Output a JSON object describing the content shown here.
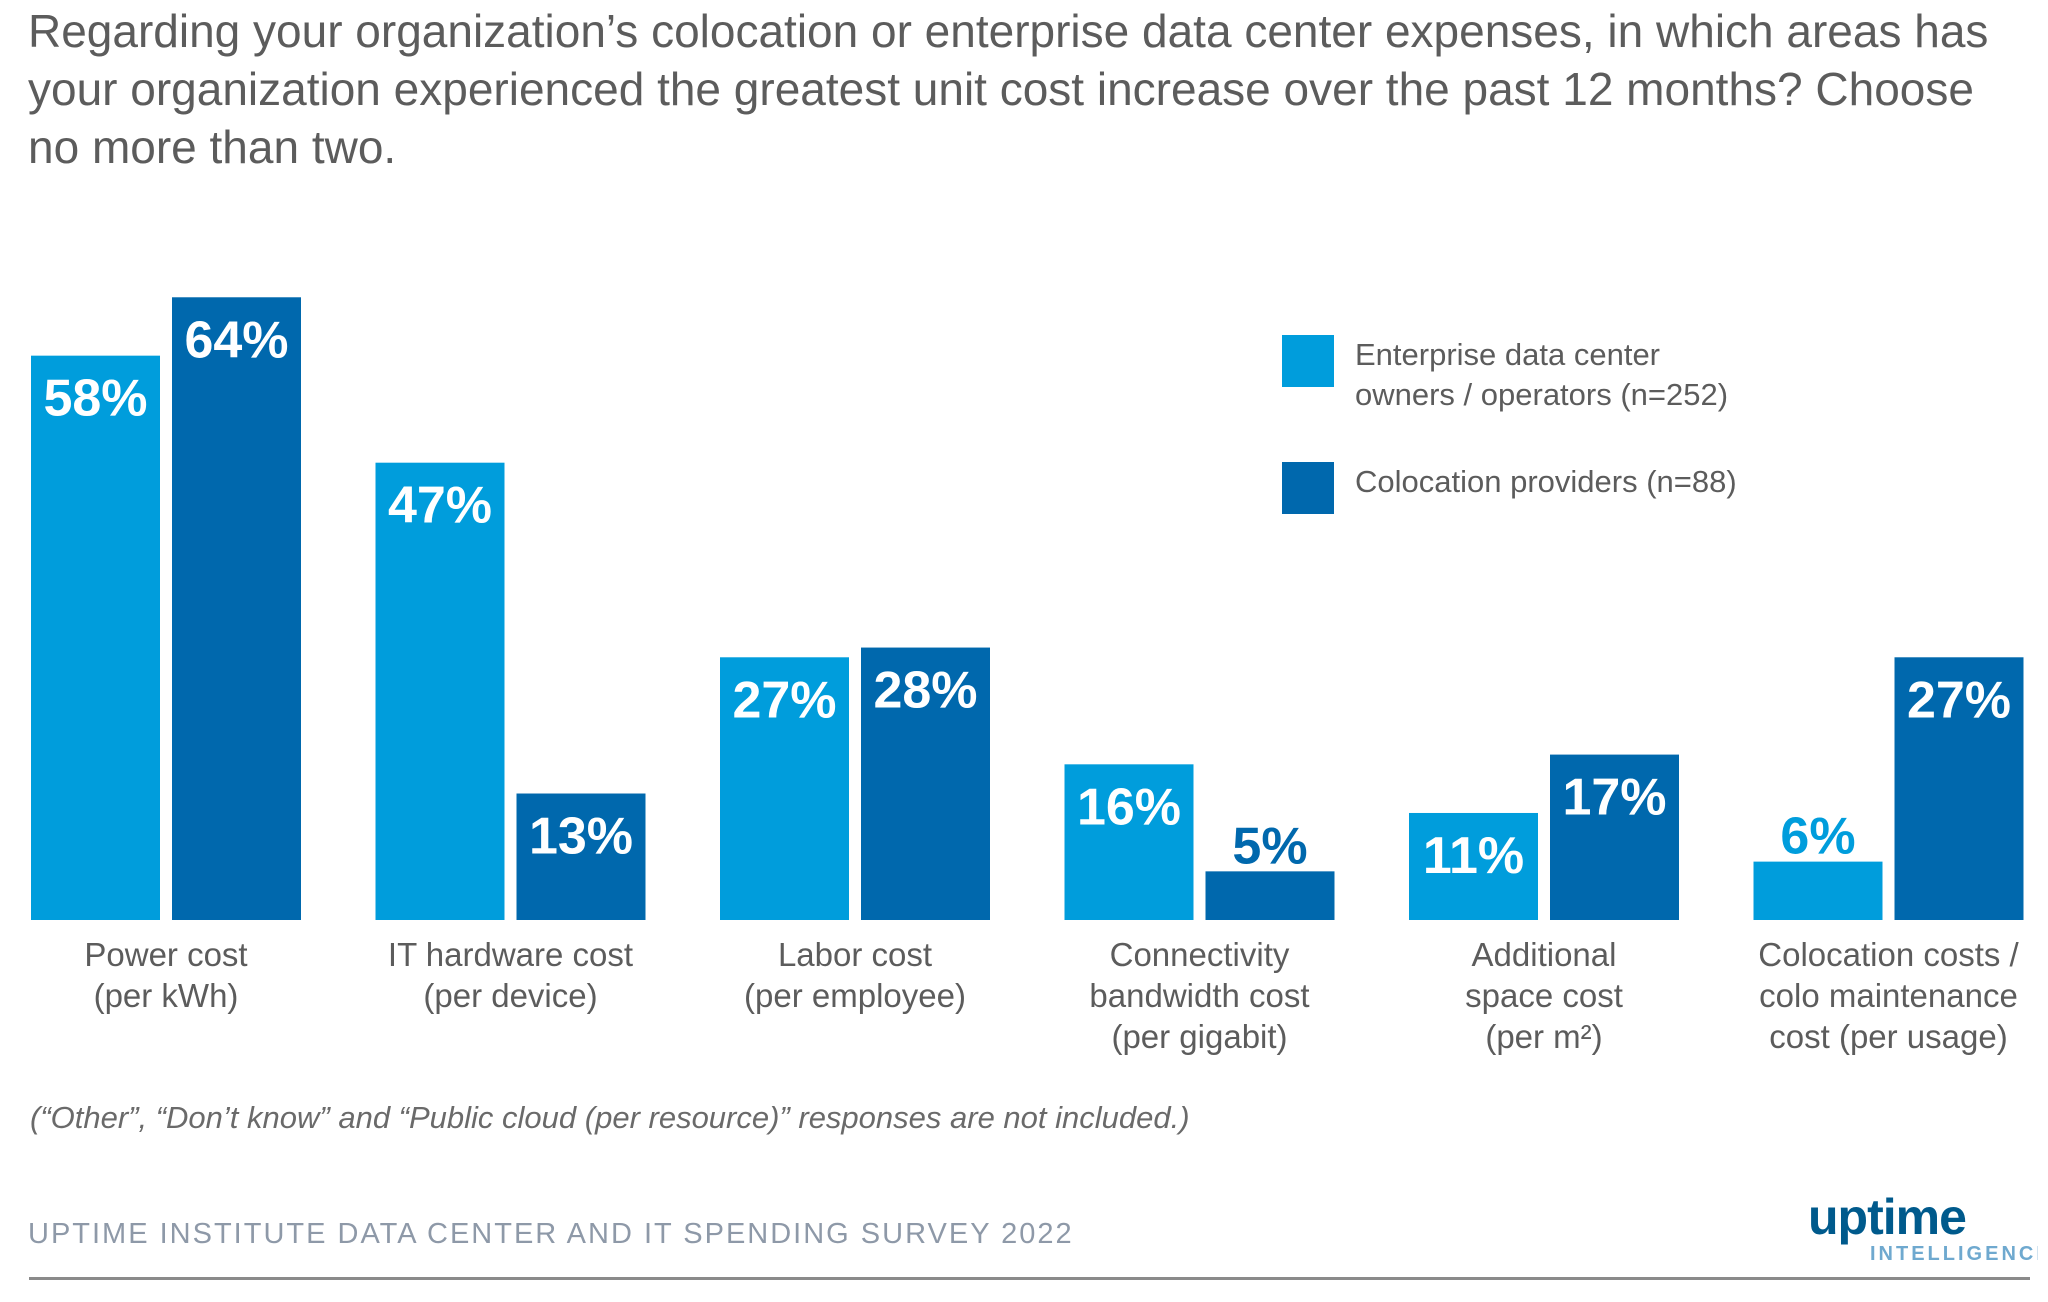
{
  "title": "Regarding your organization’s colocation or enterprise data center expenses, in which areas has your organization experienced the greatest unit cost increase over the past 12 months? Choose no more than two.",
  "chart_data": {
    "type": "bar",
    "categories": [
      [
        "Power cost",
        "(per kWh)"
      ],
      [
        "IT hardware cost",
        "(per device)"
      ],
      [
        "Labor cost",
        "(per employee)"
      ],
      [
        "Connectivity",
        "bandwidth cost",
        "(per gigabit)"
      ],
      [
        "Additional",
        "space cost",
        "(per m²)"
      ],
      [
        "Colocation costs /",
        "colo maintenance",
        "cost (per usage)"
      ]
    ],
    "series": [
      {
        "name": "Enterprise data center owners / operators (n=252)",
        "legend_lines": [
          "Enterprise data center",
          "owners / operators (n=252)"
        ],
        "color": "#009ddc",
        "values": [
          58,
          47,
          27,
          16,
          11,
          6
        ],
        "labels": [
          "58%",
          "47%",
          "27%",
          "16%",
          "11%",
          "6%"
        ]
      },
      {
        "name": "Colocation providers (n=88)",
        "legend_lines": [
          "Colocation providers (n=88)"
        ],
        "color": "#0068ad",
        "values": [
          64,
          13,
          28,
          5,
          17,
          27
        ],
        "labels": [
          "64%",
          "13%",
          "28%",
          "5%",
          "17%",
          "27%"
        ]
      }
    ],
    "ylim": [
      0,
      64
    ],
    "grid": false,
    "axis_visible": false,
    "legend_position": "top-right"
  },
  "note": "(“Other”, “Don’t know” and “Public cloud (per resource)” responses are not included.)",
  "source": "UPTIME INSTITUTE DATA CENTER AND IT SPENDING SURVEY 2022",
  "logo": {
    "word": "uptime",
    "sub": "INTELLIGENCE",
    "color_main": "#005a8c",
    "color_sub": "#6fa9cf"
  }
}
